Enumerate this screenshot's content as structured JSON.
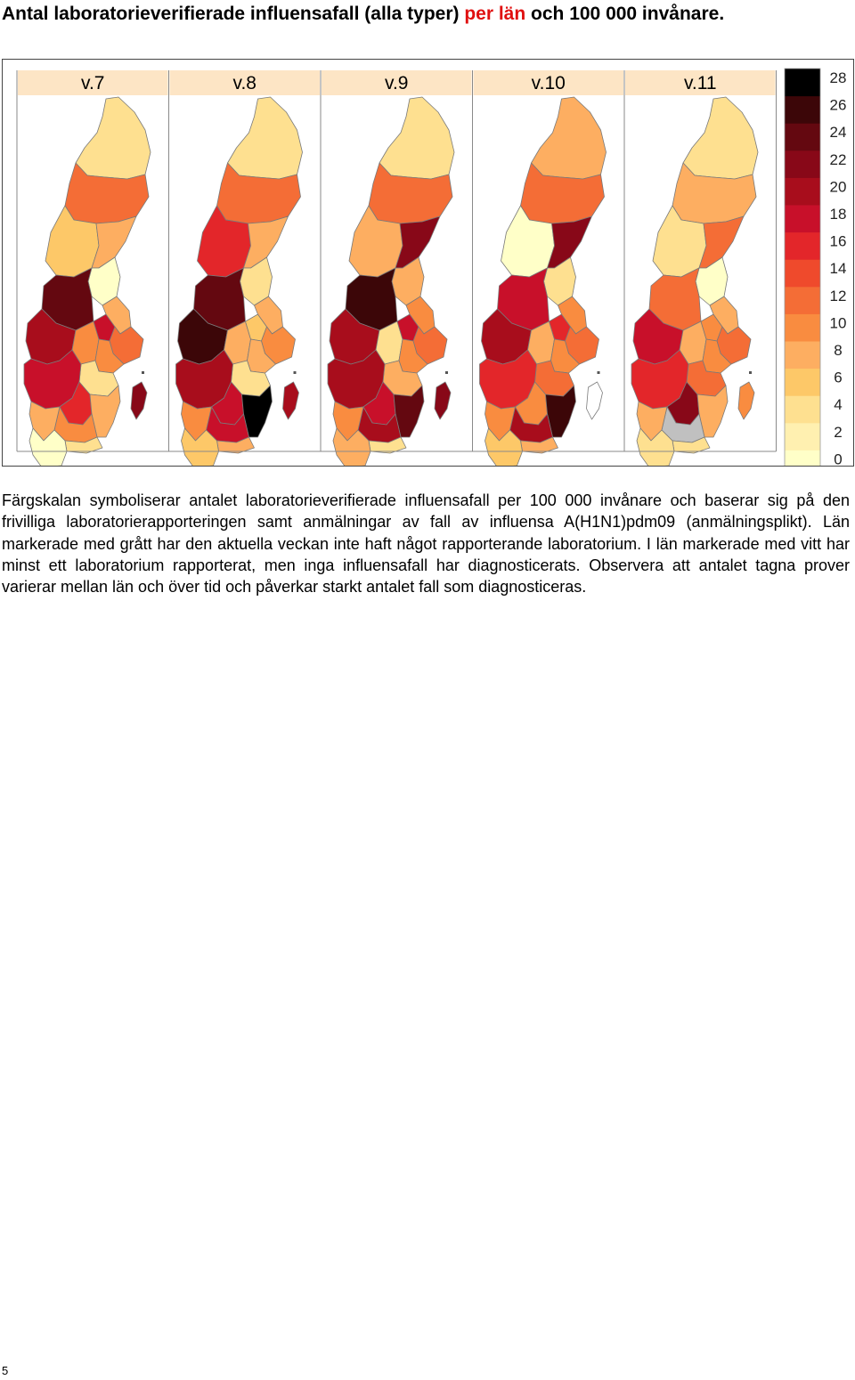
{
  "title": {
    "part1": "Antal laboratorieverifierade influensafall (alla typer) ",
    "highlight": "per län",
    "part2": " och 100 000 invånare."
  },
  "weeks": [
    "v.7",
    "v.8",
    "v.9",
    "v.10",
    "v.11"
  ],
  "legend": {
    "ticks": [
      "28",
      "26",
      "24",
      "22",
      "20",
      "18",
      "16",
      "14",
      "12",
      "10",
      "8",
      "6",
      "4",
      "2",
      "0"
    ],
    "colors_bottom_to_top": [
      "#ffffc8",
      "#fff0b0",
      "#fee090",
      "#fdc868",
      "#fdae61",
      "#f98c40",
      "#f46d36",
      "#ef4a2c",
      "#e3262a",
      "#c8102a",
      "#a80d1c",
      "#880818",
      "#640810",
      "#3c0608",
      "#000000"
    ]
  },
  "colors": {
    "header_bg": "#fde5c5",
    "no_lab": "#c0c0c0",
    "no_cases": "#ffffff",
    "title_highlight": "#e01010"
  },
  "regions_by_week": {
    "v.7": {
      "norrbotten": "#fee090",
      "vasterbotten": "#f46d36",
      "jamtland": "#fdc868",
      "vasternorrland": "#fdae61",
      "gavleborg": "#ffffc8",
      "dalarna": "#640810",
      "varmland": "#a80d1c",
      "orebro": "#f98c40",
      "vastmanland": "#c8102a",
      "uppsala": "#fdae61",
      "stockholm": "#f46d36",
      "sodermanland": "#f98c40",
      "ostergotland": "#fee090",
      "vastra_gotaland": "#c8102a",
      "jonkoping": "#e3262a",
      "kalmar": "#fdae61",
      "kronoberg": "#f98c40",
      "blekinge": "#fee090",
      "halland": "#fdae61",
      "skane": "#ffffc8",
      "gotland": "#880818"
    },
    "v.8": {
      "norrbotten": "#fee090",
      "vasterbotten": "#f46d36",
      "jamtland": "#e3262a",
      "vasternorrland": "#fdae61",
      "gavleborg": "#fee090",
      "dalarna": "#640810",
      "varmland": "#3c0608",
      "orebro": "#fdae61",
      "vastmanland": "#fdc868",
      "uppsala": "#fdae61",
      "stockholm": "#f98c40",
      "sodermanland": "#fdae61",
      "ostergotland": "#fee090",
      "vastra_gotaland": "#a80d1c",
      "jonkoping": "#c8102a",
      "kalmar": "#000000",
      "kronoberg": "#c8102a",
      "blekinge": "#fdae61",
      "halland": "#f98c40",
      "skane": "#fdc868",
      "gotland": "#a80d1c"
    },
    "v.9": {
      "norrbotten": "#fee090",
      "vasterbotten": "#f46d36",
      "jamtland": "#fdae61",
      "vasternorrland": "#880818",
      "gavleborg": "#fdae61",
      "dalarna": "#3c0608",
      "varmland": "#a80d1c",
      "orebro": "#fee090",
      "vastmanland": "#c8102a",
      "uppsala": "#f98c40",
      "stockholm": "#f46d36",
      "sodermanland": "#f98c40",
      "ostergotland": "#fdae61",
      "vastra_gotaland": "#a80d1c",
      "jonkoping": "#c8102a",
      "kalmar": "#640810",
      "kronoberg": "#a80d1c",
      "blekinge": "#fee090",
      "halland": "#f98c40",
      "skane": "#fdae61",
      "gotland": "#880818"
    },
    "v.10": {
      "norrbotten": "#fdae61",
      "vasterbotten": "#f46d36",
      "jamtland": "#ffffc8",
      "vasternorrland": "#880818",
      "gavleborg": "#fee090",
      "dalarna": "#c8102a",
      "varmland": "#a80d1c",
      "orebro": "#fdae61",
      "vastmanland": "#e3262a",
      "uppsala": "#f98c40",
      "stockholm": "#f46d36",
      "sodermanland": "#f98c40",
      "ostergotland": "#f46d36",
      "vastra_gotaland": "#e3262a",
      "jonkoping": "#f98c40",
      "kalmar": "#3c0608",
      "kronoberg": "#a80d1c",
      "blekinge": "#fdae61",
      "halland": "#f98c40",
      "skane": "#fdc868",
      "gotland": "#ffffff"
    },
    "v.11": {
      "norrbotten": "#fee090",
      "vasterbotten": "#fdae61",
      "jamtland": "#fee090",
      "vasternorrland": "#f46d36",
      "gavleborg": "#ffffc8",
      "dalarna": "#f46d36",
      "varmland": "#c8102a",
      "orebro": "#fdae61",
      "vastmanland": "#f98c40",
      "uppsala": "#fdae61",
      "stockholm": "#f46d36",
      "sodermanland": "#f98c40",
      "ostergotland": "#f46d36",
      "vastra_gotaland": "#e3262a",
      "jonkoping": "#880818",
      "kalmar": "#fdae61",
      "kronoberg": "#c0c0c0",
      "blekinge": "#fee090",
      "halland": "#fdae61",
      "skane": "#fee090",
      "gotland": "#f98c40"
    }
  },
  "caption": "Färgskalan symboliserar antalet laboratorieverifierade influensafall per 100 000 invånare och baserar sig på den frivilliga laboratorierapporteringen samt anmälningar av fall av influensa A(H1N1)pdm09 (anmälningsplikt). Län markerade med grått har den aktuella veckan inte haft något rapporterande laboratorium. I län markerade med vitt har minst ett laboratorium rapporterat, men inga influensafall har diagnosticerats. Observera att antalet tagna prover varierar mellan län och över tid och påverkar starkt antalet fall som diagnosticeras.",
  "page_number": "5"
}
